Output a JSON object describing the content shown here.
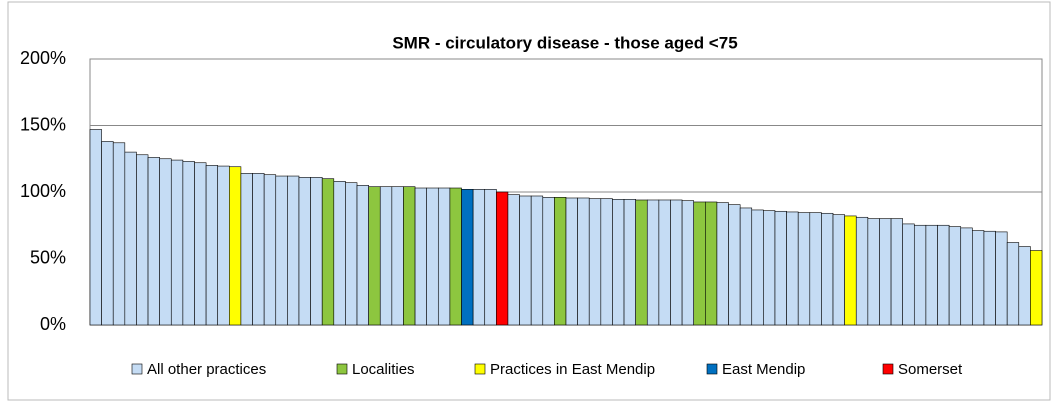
{
  "chart_data": {
    "type": "bar",
    "title": "SMR - circulatory disease - those aged <75",
    "values": [
      147,
      138,
      137,
      130,
      128,
      126,
      125,
      124,
      123,
      122,
      120,
      119.5,
      119,
      114,
      114,
      113,
      112,
      112,
      111,
      111,
      110,
      108,
      107,
      105,
      104,
      104,
      104,
      104,
      103,
      103,
      103,
      103,
      102,
      102,
      102,
      100,
      98,
      97,
      97,
      96,
      96,
      95.5,
      95.5,
      95,
      95,
      94.5,
      94.5,
      94,
      94,
      94,
      94,
      93.5,
      92.5,
      92.5,
      92,
      90.5,
      88,
      86.5,
      86,
      85.5,
      85,
      84.5,
      84.5,
      84,
      83,
      82,
      81,
      80,
      80,
      80,
      76,
      75,
      75,
      75,
      74,
      73,
      71,
      70.5,
      70,
      62,
      59,
      56
    ],
    "colors": [
      "#c5dcf4",
      "#c5dcf4",
      "#c5dcf4",
      "#c5dcf4",
      "#c5dcf4",
      "#c5dcf4",
      "#c5dcf4",
      "#c5dcf4",
      "#c5dcf4",
      "#c5dcf4",
      "#c5dcf4",
      "#c5dcf4",
      "#ffff00",
      "#c5dcf4",
      "#c5dcf4",
      "#c5dcf4",
      "#c5dcf4",
      "#c5dcf4",
      "#c5dcf4",
      "#c5dcf4",
      "#8dc63f",
      "#c5dcf4",
      "#c5dcf4",
      "#c5dcf4",
      "#8dc63f",
      "#c5dcf4",
      "#c5dcf4",
      "#8dc63f",
      "#c5dcf4",
      "#c5dcf4",
      "#c5dcf4",
      "#8dc63f",
      "#0070c0",
      "#c5dcf4",
      "#c5dcf4",
      "#ff0000",
      "#c5dcf4",
      "#c5dcf4",
      "#c5dcf4",
      "#c5dcf4",
      "#8dc63f",
      "#c5dcf4",
      "#c5dcf4",
      "#c5dcf4",
      "#c5dcf4",
      "#c5dcf4",
      "#c5dcf4",
      "#8dc63f",
      "#c5dcf4",
      "#c5dcf4",
      "#c5dcf4",
      "#c5dcf4",
      "#8dc63f",
      "#8dc63f",
      "#c5dcf4",
      "#c5dcf4",
      "#c5dcf4",
      "#c5dcf4",
      "#c5dcf4",
      "#c5dcf4",
      "#c5dcf4",
      "#c5dcf4",
      "#c5dcf4",
      "#c5dcf4",
      "#c5dcf4",
      "#ffff00",
      "#c5dcf4",
      "#c5dcf4",
      "#c5dcf4",
      "#c5dcf4",
      "#c5dcf4",
      "#c5dcf4",
      "#c5dcf4",
      "#c5dcf4",
      "#c5dcf4",
      "#c5dcf4",
      "#c5dcf4",
      "#c5dcf4",
      "#c5dcf4",
      "#c5dcf4",
      "#c5dcf4",
      "#ffff00"
    ],
    "legend": [
      {
        "name": "All other practices",
        "color": "#c5dcf4"
      },
      {
        "name": "Localities",
        "color": "#8dc63f"
      },
      {
        "name": "Practices in East Mendip",
        "color": "#ffff00"
      },
      {
        "name": "East Mendip",
        "color": "#0070c0"
      },
      {
        "name": "Somerset",
        "color": "#ff0000"
      }
    ],
    "ylim": [
      0,
      200
    ],
    "yticks": [
      {
        "value": 0,
        "label": "0%"
      },
      {
        "value": 50,
        "label": "50%"
      },
      {
        "value": 100,
        "label": "100%"
      },
      {
        "value": 150,
        "label": "150%"
      },
      {
        "value": 200,
        "label": "200%"
      }
    ],
    "grid": true
  }
}
